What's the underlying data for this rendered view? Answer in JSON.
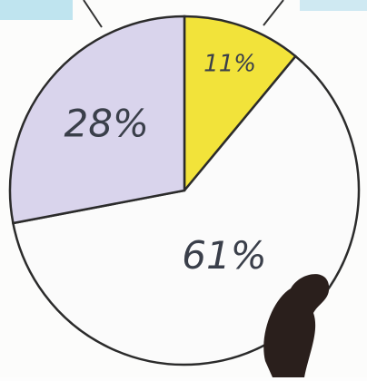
{
  "chart_data": {
    "type": "pie",
    "categories": [
      null,
      null,
      null
    ],
    "values": [
      11,
      61,
      28
    ],
    "value_labels": [
      "11%",
      "61%",
      "28%"
    ],
    "colors": [
      "#f2e33a",
      "#fbfbfb",
      "#d9d4ec"
    ],
    "start_angle": 0,
    "direction": "clockwise"
  }
}
